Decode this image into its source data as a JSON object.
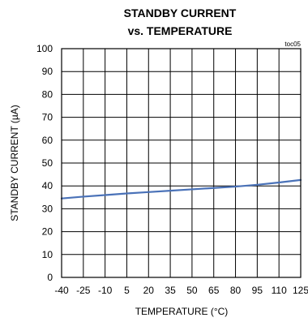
{
  "chart_data": {
    "type": "line",
    "title_line1": "STANDBY CURRENT",
    "title_line2": "vs. TEMPERATURE",
    "corner_tag": "toc05",
    "xlabel": "TEMPERATURE (°C)",
    "ylabel": "STANDBY CURRENT (µA)",
    "xlim": [
      -40,
      125
    ],
    "ylim": [
      0,
      100
    ],
    "x_ticks": [
      "-40",
      "-25",
      "-10",
      "5",
      "20",
      "35",
      "50",
      "65",
      "80",
      "95",
      "110",
      "125"
    ],
    "y_ticks": [
      "0",
      "10",
      "20",
      "30",
      "40",
      "50",
      "60",
      "70",
      "80",
      "90",
      "100"
    ],
    "grid": true,
    "series": [
      {
        "color": "#4a72b8",
        "x": [
          -40,
          -25,
          -10,
          5,
          20,
          35,
          50,
          65,
          80,
          95,
          110,
          125
        ],
        "y": [
          34.5,
          35.3,
          36.0,
          36.7,
          37.3,
          37.9,
          38.5,
          39.1,
          39.7,
          40.5,
          41.5,
          42.6
        ]
      }
    ]
  }
}
